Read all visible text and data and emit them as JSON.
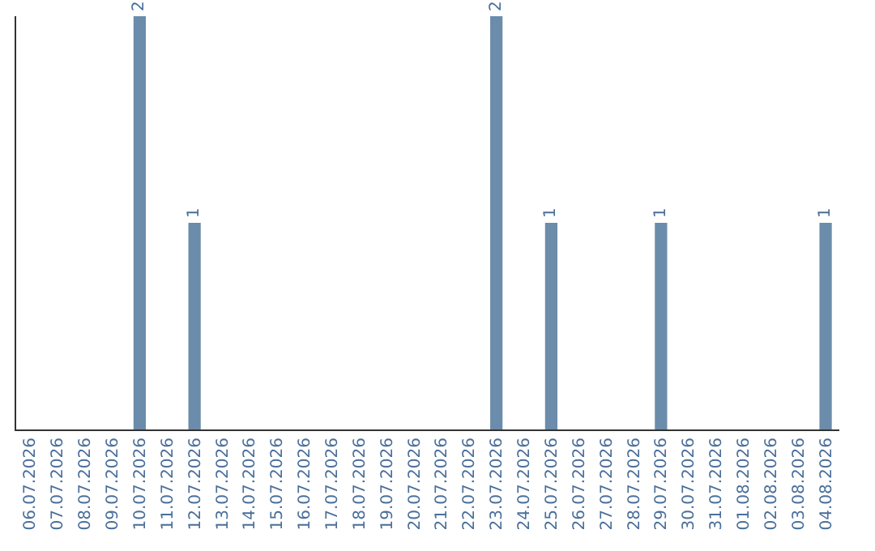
{
  "chart_data": {
    "type": "bar",
    "categories": [
      "06.07.2026",
      "07.07.2026",
      "08.07.2026",
      "09.07.2026",
      "10.07.2026",
      "11.07.2026",
      "12.07.2026",
      "13.07.2026",
      "14.07.2026",
      "15.07.2026",
      "16.07.2026",
      "17.07.2026",
      "18.07.2026",
      "19.07.2026",
      "20.07.2026",
      "21.07.2026",
      "22.07.2026",
      "23.07.2026",
      "24.07.2026",
      "25.07.2026",
      "26.07.2026",
      "27.07.2026",
      "28.07.2026",
      "29.07.2026",
      "30.07.2026",
      "31.07.2026",
      "01.08.2026",
      "02.08.2026",
      "03.08.2026",
      "04.08.2026"
    ],
    "values": [
      0,
      0,
      0,
      0,
      2,
      0,
      1,
      0,
      0,
      0,
      0,
      0,
      0,
      0,
      0,
      0,
      0,
      2,
      0,
      1,
      0,
      0,
      0,
      1,
      0,
      0,
      0,
      0,
      0,
      1
    ],
    "value_labels": [
      null,
      null,
      null,
      null,
      "2",
      null,
      "1",
      null,
      null,
      null,
      null,
      null,
      null,
      null,
      null,
      null,
      null,
      "2",
      null,
      "1",
      null,
      null,
      null,
      "1",
      null,
      null,
      null,
      null,
      null,
      "1"
    ],
    "color": "#6b8cab",
    "legend": false,
    "tick_labels": "x"
  }
}
